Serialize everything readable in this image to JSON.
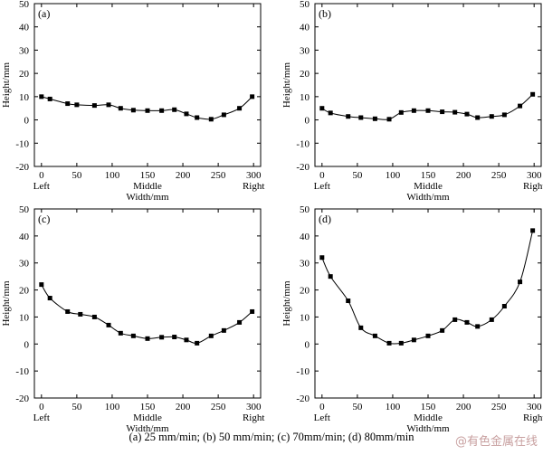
{
  "chart_data": [
    {
      "type": "line",
      "panel_label": "(a)",
      "xlabel": "Width/mm",
      "ylabel": "Height/mm",
      "xlim": [
        -10,
        310
      ],
      "ylim": [
        -20,
        50
      ],
      "xticks": [
        "0",
        "50",
        "100",
        "150",
        "200",
        "250",
        "300"
      ],
      "yticks": [
        "-20",
        "-10",
        "0",
        "10",
        "20",
        "30",
        "40",
        "50"
      ],
      "position_labels": [
        "Left",
        "Middle",
        "Right"
      ],
      "series": [
        {
          "marker": "square",
          "x": [
            0,
            12,
            37,
            50,
            75,
            95,
            112,
            130,
            150,
            170,
            188,
            205,
            220,
            240,
            258,
            280,
            298
          ],
          "y": [
            10,
            9,
            7,
            6.5,
            6.2,
            6.5,
            5,
            4.2,
            4,
            4,
            4.4,
            2.6,
            1,
            0.3,
            2.2,
            5,
            10
          ]
        }
      ]
    },
    {
      "type": "line",
      "panel_label": "(b)",
      "xlabel": "Width/mm",
      "ylabel": "Height/mm",
      "xlim": [
        -10,
        310
      ],
      "ylim": [
        -20,
        50
      ],
      "xticks": [
        "0",
        "50",
        "100",
        "150",
        "200",
        "250",
        "300"
      ],
      "yticks": [
        "-20",
        "-10",
        "0",
        "10",
        "20",
        "30",
        "40",
        "50"
      ],
      "position_labels": [
        "Left",
        "Middle",
        "Right"
      ],
      "series": [
        {
          "marker": "square",
          "x": [
            0,
            12,
            37,
            55,
            75,
            95,
            112,
            130,
            150,
            170,
            188,
            205,
            220,
            240,
            258,
            280,
            298
          ],
          "y": [
            5,
            3,
            1.5,
            1,
            0.5,
            0.3,
            3.2,
            4,
            4,
            3.5,
            3.3,
            2.5,
            1,
            1.5,
            2.2,
            6,
            11
          ]
        }
      ]
    },
    {
      "type": "line",
      "panel_label": "(c)",
      "xlabel": "Width/mm",
      "ylabel": "Height/mm",
      "xlim": [
        -10,
        310
      ],
      "ylim": [
        -20,
        50
      ],
      "xticks": [
        "0",
        "50",
        "100",
        "150",
        "200",
        "250",
        "300"
      ],
      "yticks": [
        "-20",
        "-10",
        "0",
        "10",
        "20",
        "30",
        "40",
        "50"
      ],
      "position_labels": [
        "Left",
        "Middle",
        "Right"
      ],
      "series": [
        {
          "marker": "square",
          "x": [
            0,
            12,
            37,
            55,
            75,
            95,
            112,
            130,
            150,
            170,
            188,
            205,
            220,
            240,
            258,
            280,
            298
          ],
          "y": [
            22,
            17,
            12,
            11,
            10,
            7,
            4,
            3,
            2,
            2.5,
            2.6,
            1.5,
            0.3,
            3,
            5,
            8,
            12
          ]
        }
      ]
    },
    {
      "type": "line",
      "panel_label": "(d)",
      "xlabel": "Width/mm",
      "ylabel": "Height/mm",
      "xlim": [
        -10,
        310
      ],
      "ylim": [
        -20,
        50
      ],
      "xticks": [
        "0",
        "50",
        "100",
        "150",
        "200",
        "250",
        "300"
      ],
      "yticks": [
        "-20",
        "-10",
        "0",
        "10",
        "20",
        "30",
        "40",
        "50"
      ],
      "position_labels": [
        "Left",
        "Middle",
        "Right"
      ],
      "series": [
        {
          "marker": "square",
          "x": [
            0,
            12,
            37,
            55,
            75,
            95,
            112,
            130,
            150,
            170,
            188,
            205,
            220,
            240,
            258,
            280,
            298
          ],
          "y": [
            32,
            25,
            16,
            6,
            3,
            0.3,
            0.3,
            1.5,
            3,
            5,
            9,
            8,
            6.5,
            9,
            14,
            23,
            42
          ]
        }
      ]
    }
  ],
  "caption": "(a) 25 mm/min; (b) 50  mm/min; (c) 70mm/min; (d) 80mm/min",
  "watermark": "@有色金属在线"
}
